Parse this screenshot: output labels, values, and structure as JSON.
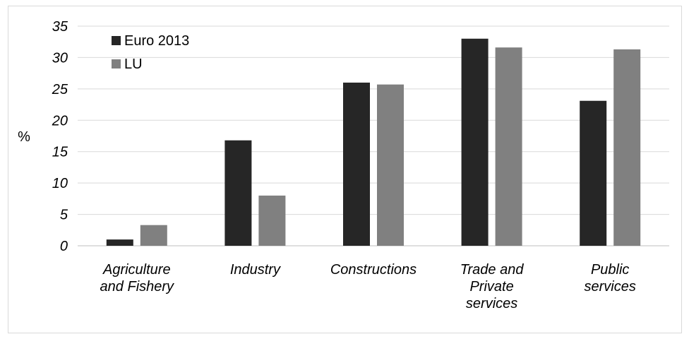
{
  "chart_data": {
    "type": "bar",
    "title": "",
    "xlabel": "",
    "ylabel": "%",
    "ylim": [
      0,
      35
    ],
    "yticks": [
      0,
      5,
      10,
      15,
      20,
      25,
      30,
      35
    ],
    "grid": true,
    "legend_position": "top-left",
    "categories": [
      [
        "Agriculture",
        "and Fishery"
      ],
      [
        "Industry"
      ],
      [
        "Constructions"
      ],
      [
        "Trade and",
        "Private",
        "services"
      ],
      [
        "Public",
        "services"
      ]
    ],
    "series": [
      {
        "name": "Euro 2013",
        "color": "#262626",
        "values": [
          1.0,
          16.8,
          26.0,
          33.0,
          23.1
        ]
      },
      {
        "name": "LU",
        "color": "#808080",
        "values": [
          3.3,
          8.0,
          25.7,
          31.6,
          31.3
        ]
      }
    ]
  }
}
